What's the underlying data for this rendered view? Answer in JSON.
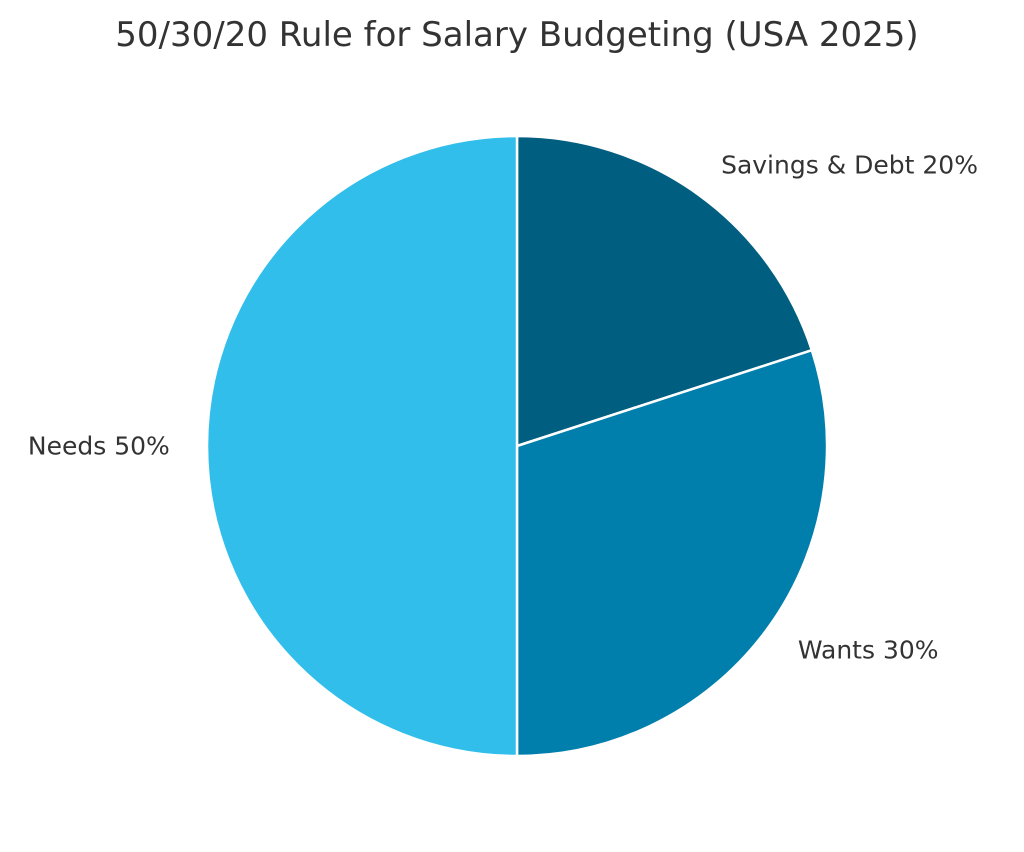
{
  "chart_data": {
    "type": "pie",
    "title": "50/30/20 Rule for Salary Budgeting (USA 2025)",
    "start": "top",
    "direction": "clockwise",
    "slices": [
      {
        "label": "Savings & Debt",
        "value": 20,
        "display": "Savings & Debt 20%",
        "color": "#005e80"
      },
      {
        "label": "Wants",
        "value": 30,
        "display": "Wants 30%",
        "color": "#007eac"
      },
      {
        "label": "Needs",
        "value": 50,
        "display": "Needs 50%",
        "color": "#31beea"
      }
    ]
  }
}
